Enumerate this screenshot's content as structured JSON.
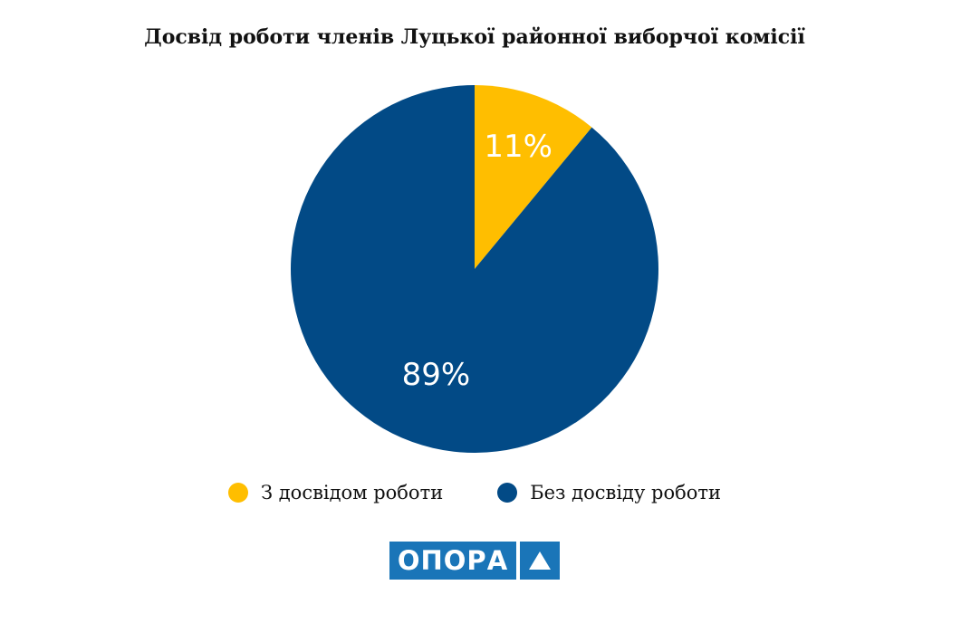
{
  "chart_data": {
    "type": "pie",
    "title": "Досвід роботи членів Луцької районної виборчої комісії",
    "categories": [
      "З досвідом роботи",
      "Без досвіду роботи"
    ],
    "values": [
      11,
      89
    ],
    "labels": [
      "11%",
      "89%"
    ],
    "colors": [
      "#ffbe00",
      "#024a86"
    ],
    "start_angle_deg": 0,
    "direction": "clockwise",
    "legend_position": "bottom"
  },
  "logo": {
    "text": "ОПОРА",
    "color": "#1a75b8",
    "icon": "triangle-icon"
  }
}
